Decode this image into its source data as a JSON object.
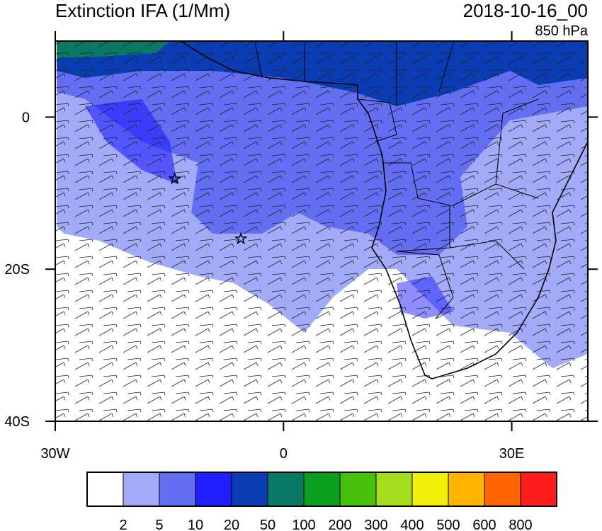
{
  "title": "Extinction IFA (1/Mm)",
  "date": "2018-10-16_00",
  "level": "850 hPa",
  "map": {
    "xlim": [
      -30,
      40
    ],
    "ylim": [
      -40,
      10
    ],
    "xticks": [
      {
        "value": -30,
        "label": "30W"
      },
      0,
      {
        "value": 30,
        "label": "30E"
      }
    ],
    "yticks": [
      0,
      {
        "value": -20,
        "label": "20S"
      },
      {
        "value": -40,
        "label": "40S"
      }
    ],
    "markers": [
      {
        "lon": -14.3,
        "lat": -8.1
      },
      {
        "lon": -5.6,
        "lat": -16
      }
    ]
  },
  "colorbar": {
    "levels": [
      2,
      5,
      10,
      20,
      50,
      100,
      200,
      300,
      400,
      500,
      600,
      800
    ],
    "colors": [
      "#ffffff",
      "#a3aaf7",
      "#646ef2",
      "#1e1eff",
      "#0a3cb4",
      "#0a7864",
      "#0aa01e",
      "#46c00a",
      "#a5dc1e",
      "#f0f00a",
      "#ffb400",
      "#ff6400",
      "#ff1e1e"
    ]
  }
}
